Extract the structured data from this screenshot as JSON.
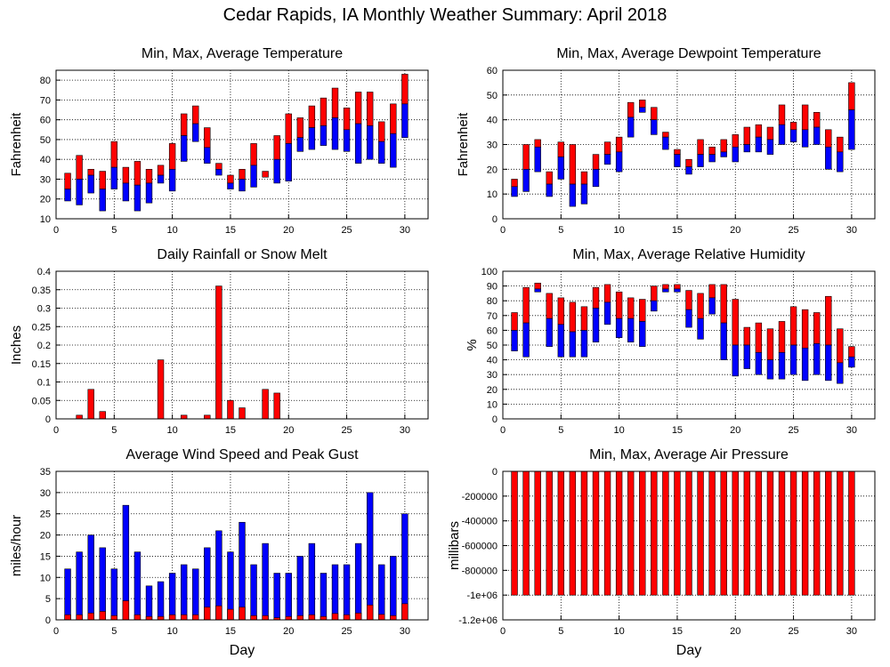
{
  "page": {
    "title": "Cedar Rapids, IA Monthly Weather Summary: April 2018"
  },
  "colors": {
    "red": "#ff0000",
    "blue": "#0000ff",
    "grid": "#000000",
    "background": "#ffffff"
  },
  "chart_data": [
    {
      "id": "temperature",
      "type": "bar",
      "kind": "range",
      "title": "Min, Max, Average Temperature",
      "xlabel": "",
      "ylabel": "Fahrenheit",
      "xlim": [
        0,
        32
      ],
      "ylim": [
        10,
        85
      ],
      "xticks": [
        0,
        5,
        10,
        15,
        20,
        25,
        30
      ],
      "yticks": [
        10,
        20,
        30,
        40,
        50,
        60,
        70,
        80
      ],
      "grid": true,
      "days": [
        1,
        2,
        3,
        4,
        5,
        6,
        7,
        8,
        9,
        10,
        11,
        12,
        13,
        14,
        15,
        16,
        17,
        18,
        19,
        20,
        21,
        22,
        23,
        24,
        25,
        26,
        27,
        28,
        29,
        30
      ],
      "min": [
        19,
        17,
        23,
        14,
        25,
        19,
        14,
        18,
        28,
        24,
        39,
        49,
        38,
        32,
        25,
        24,
        26,
        31,
        28,
        29,
        44,
        45,
        47,
        45,
        44,
        38,
        40,
        38,
        36,
        51
      ],
      "avg": [
        25,
        30,
        32,
        25,
        36,
        28,
        27,
        28,
        32,
        35,
        52,
        58,
        46,
        35,
        28,
        30,
        37,
        31,
        40,
        48,
        51,
        56,
        57,
        61,
        55,
        58,
        57,
        49,
        53,
        68
      ],
      "max": [
        33,
        42,
        35,
        34,
        49,
        36,
        39,
        35,
        37,
        48,
        63,
        67,
        56,
        38,
        32,
        35,
        48,
        34,
        52,
        63,
        61,
        67,
        71,
        76,
        66,
        74,
        74,
        59,
        68,
        83
      ]
    },
    {
      "id": "dewpoint",
      "type": "bar",
      "kind": "range",
      "title": "Min, Max, Average Dewpoint Temperature",
      "xlabel": "",
      "ylabel": "Fahrenheit",
      "xlim": [
        0,
        32
      ],
      "ylim": [
        0,
        60
      ],
      "xticks": [
        0,
        5,
        10,
        15,
        20,
        25,
        30
      ],
      "yticks": [
        0,
        10,
        20,
        30,
        40,
        50,
        60
      ],
      "grid": true,
      "days": [
        1,
        2,
        3,
        4,
        5,
        6,
        7,
        8,
        9,
        10,
        11,
        12,
        13,
        14,
        15,
        16,
        17,
        18,
        19,
        20,
        21,
        22,
        23,
        24,
        25,
        26,
        27,
        28,
        29,
        30
      ],
      "min": [
        9,
        11,
        19,
        9,
        16,
        5,
        6,
        13,
        22,
        19,
        33,
        43,
        34,
        28,
        21,
        18,
        21,
        23,
        25,
        23,
        27,
        27,
        26,
        30,
        31,
        29,
        30,
        20,
        19,
        28
      ],
      "avg": [
        13,
        20,
        29,
        14,
        25,
        14,
        14,
        20,
        26,
        27,
        41,
        45,
        40,
        33,
        26,
        21,
        26,
        26,
        27,
        29,
        30,
        33,
        32,
        38,
        36,
        36,
        37,
        29,
        27,
        44
      ],
      "max": [
        16,
        30,
        32,
        19,
        31,
        30,
        19,
        26,
        31,
        33,
        47,
        48,
        45,
        35,
        28,
        24,
        32,
        29,
        32,
        34,
        37,
        38,
        37,
        46,
        39,
        46,
        43,
        36,
        33,
        55
      ]
    },
    {
      "id": "rainfall",
      "type": "bar",
      "kind": "single",
      "title": "Daily Rainfall or Snow Melt",
      "xlabel": "",
      "ylabel": "Inches",
      "xlim": [
        0,
        32
      ],
      "ylim": [
        0,
        0.4
      ],
      "xticks": [
        0,
        5,
        10,
        15,
        20,
        25,
        30
      ],
      "yticks": [
        0,
        0.05,
        0.1,
        0.15,
        0.2,
        0.25,
        0.3,
        0.35,
        0.4
      ],
      "ytick_labels": [
        "0",
        "0.05",
        "0.1",
        "0.15",
        "0.2",
        "0.25",
        "0.3",
        "0.35",
        "0.4"
      ],
      "grid": true,
      "days": [
        1,
        2,
        3,
        4,
        5,
        6,
        7,
        8,
        9,
        10,
        11,
        12,
        13,
        14,
        15,
        16,
        17,
        18,
        19,
        20,
        21,
        22,
        23,
        24,
        25,
        26,
        27,
        28,
        29,
        30
      ],
      "values": [
        0,
        0.01,
        0.08,
        0.02,
        0,
        0,
        0,
        0,
        0.16,
        0,
        0.01,
        0,
        0.01,
        0.36,
        0.05,
        0.03,
        0,
        0.08,
        0.07,
        0,
        0,
        0,
        0,
        0,
        0,
        0,
        0,
        0,
        0,
        0
      ]
    },
    {
      "id": "humidity",
      "type": "bar",
      "kind": "range",
      "title": "Min, Max, Average Relative Humidity",
      "xlabel": "",
      "ylabel": "%",
      "xlim": [
        0,
        32
      ],
      "ylim": [
        0,
        100
      ],
      "xticks": [
        0,
        5,
        10,
        15,
        20,
        25,
        30
      ],
      "yticks": [
        0,
        10,
        20,
        30,
        40,
        50,
        60,
        70,
        80,
        90,
        100
      ],
      "grid": true,
      "days": [
        1,
        2,
        3,
        4,
        5,
        6,
        7,
        8,
        9,
        10,
        11,
        12,
        13,
        14,
        15,
        16,
        17,
        18,
        19,
        20,
        21,
        22,
        23,
        24,
        25,
        26,
        27,
        28,
        29,
        30
      ],
      "min": [
        46,
        42,
        86,
        49,
        42,
        42,
        42,
        52,
        64,
        55,
        52,
        49,
        73,
        86,
        86,
        62,
        54,
        71,
        40,
        29,
        34,
        30,
        27,
        27,
        30,
        26,
        30,
        26,
        24,
        35
      ],
      "avg": [
        60,
        65,
        88,
        68,
        64,
        59,
        60,
        75,
        79,
        68,
        68,
        66,
        80,
        88,
        88,
        74,
        68,
        82,
        65,
        50,
        50,
        45,
        40,
        45,
        50,
        48,
        51,
        50,
        38,
        42
      ],
      "max": [
        72,
        89,
        92,
        85,
        82,
        79,
        76,
        89,
        91,
        86,
        82,
        81,
        90,
        91,
        91,
        87,
        85,
        91,
        91,
        81,
        62,
        65,
        61,
        66,
        76,
        74,
        72,
        83,
        61,
        49
      ]
    },
    {
      "id": "wind",
      "type": "bar",
      "kind": "overlay",
      "title": "Average Wind Speed and Peak Gust",
      "xlabel": "Day",
      "ylabel": "miles/hour",
      "xlim": [
        0,
        32
      ],
      "ylim": [
        0,
        35
      ],
      "xticks": [
        0,
        5,
        10,
        15,
        20,
        25,
        30
      ],
      "yticks": [
        0,
        5,
        10,
        15,
        20,
        25,
        30,
        35
      ],
      "grid": true,
      "days": [
        1,
        2,
        3,
        4,
        5,
        6,
        7,
        8,
        9,
        10,
        11,
        12,
        13,
        14,
        15,
        16,
        17,
        18,
        19,
        20,
        21,
        22,
        23,
        24,
        25,
        26,
        27,
        28,
        29,
        30
      ],
      "gust": [
        12,
        16,
        20,
        17,
        12,
        27,
        16,
        8,
        9,
        11,
        13,
        12,
        17,
        21,
        16,
        23,
        13,
        18,
        11,
        11,
        15,
        18,
        11,
        13,
        13,
        18,
        30,
        13,
        15,
        25
      ],
      "avg": [
        1.2,
        1.2,
        1.6,
        2.0,
        1.0,
        4.5,
        1.2,
        0.8,
        0.8,
        1.2,
        1.2,
        1.2,
        3.0,
        3.3,
        2.5,
        3.0,
        1.0,
        1.0,
        0.5,
        0.8,
        1.0,
        1.2,
        0.8,
        1.5,
        1.2,
        1.6,
        3.5,
        1.3,
        1.0,
        3.8
      ]
    },
    {
      "id": "pressure",
      "type": "bar",
      "kind": "single",
      "title": "Min, Max, Average Air Pressure",
      "xlabel": "Day",
      "ylabel": "millibars",
      "xlim": [
        0,
        32
      ],
      "ylim": [
        -1200000,
        0
      ],
      "xticks": [
        0,
        5,
        10,
        15,
        20,
        25,
        30
      ],
      "yticks": [
        -1200000,
        -1000000,
        -800000,
        -600000,
        -400000,
        -200000,
        0
      ],
      "ytick_labels": [
        "-1.2e+06",
        "-1e+06",
        "-800000",
        "-600000",
        "-400000",
        "-200000",
        "0"
      ],
      "grid": true,
      "days": [
        1,
        2,
        3,
        4,
        5,
        6,
        7,
        8,
        9,
        10,
        11,
        12,
        13,
        14,
        15,
        16,
        17,
        18,
        19,
        20,
        21,
        22,
        23,
        24,
        25,
        26,
        27,
        28,
        29,
        30
      ],
      "values": [
        -1000000,
        -1000000,
        -1000000,
        -1000000,
        -1000000,
        -1000000,
        -1000000,
        -1000000,
        -1000000,
        -1000000,
        -1000000,
        -1000000,
        -1000000,
        -1000000,
        -1000000,
        -1000000,
        -1000000,
        -1000000,
        -1000000,
        -1000000,
        -1000000,
        -1000000,
        -1000000,
        -1000000,
        -1000000,
        -1000000,
        -1000000,
        -1000000,
        -1000000,
        -1000000
      ]
    }
  ]
}
